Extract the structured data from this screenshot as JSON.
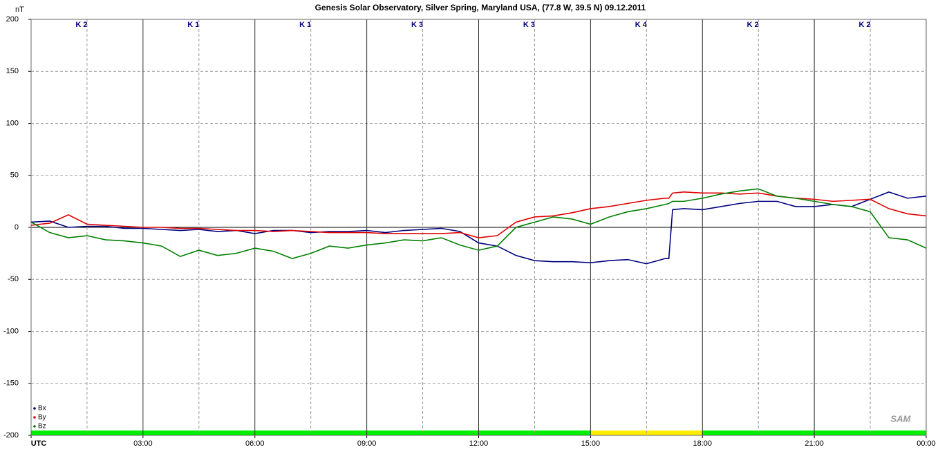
{
  "chart_data": {
    "type": "line",
    "title": "Genesis Solar Observatory, Silver Spring, Maryland USA, (77.8 W, 39.5 N)  09.12.2011",
    "y_label": "nT",
    "logo": "SAM",
    "x": [
      0,
      0.5,
      1,
      1.5,
      2,
      2.5,
      3,
      3.5,
      4,
      4.5,
      5,
      5.5,
      6,
      6.5,
      7,
      7.5,
      8,
      8.5,
      9,
      9.5,
      10,
      10.5,
      11,
      11.5,
      12,
      12.5,
      13,
      13.5,
      14,
      14.5,
      15,
      15.5,
      16,
      16.5,
      17,
      17.1,
      17.2,
      17.5,
      18,
      18.5,
      19,
      19.5,
      20,
      20.5,
      21,
      21.5,
      22,
      22.5,
      23,
      23.5,
      24
    ],
    "series": [
      {
        "name": "Bx",
        "color": "#000080",
        "values": [
          5,
          6,
          0,
          1,
          1,
          -1,
          -1,
          -2,
          -3,
          -2,
          -4,
          -3,
          -6,
          -3,
          -3,
          -5,
          -4,
          -4,
          -3,
          -5,
          -3,
          -2,
          -1,
          -4,
          -15,
          -18,
          -27,
          -32,
          -33,
          -33,
          -34,
          -32,
          -31,
          -35,
          -30,
          -30,
          17,
          18,
          17,
          20,
          23,
          25,
          25,
          20,
          20,
          22,
          20,
          27,
          34,
          28,
          30
        ]
      },
      {
        "name": "By",
        "color": "#e00000",
        "values": [
          2,
          4,
          12,
          3,
          2,
          1,
          0,
          0,
          -1,
          -1,
          -2,
          -3,
          -3,
          -4,
          -3,
          -4,
          -5,
          -5,
          -5,
          -6,
          -6,
          -6,
          -6,
          -5,
          -10,
          -8,
          5,
          10,
          11,
          14,
          18,
          20,
          23,
          26,
          28,
          28,
          33,
          34,
          33,
          33,
          32,
          33,
          30,
          28,
          27,
          25,
          26,
          27,
          18,
          13,
          11
        ]
      },
      {
        "name": "Bz",
        "color": "#008000",
        "values": [
          5,
          -5,
          -10,
          -8,
          -12,
          -13,
          -15,
          -18,
          -28,
          -22,
          -27,
          -25,
          -20,
          -23,
          -30,
          -25,
          -18,
          -20,
          -17,
          -15,
          -12,
          -13,
          -10,
          -17,
          -22,
          -18,
          0,
          5,
          10,
          8,
          3,
          10,
          15,
          18,
          22,
          23,
          25,
          25,
          28,
          32,
          35,
          37,
          30,
          28,
          25,
          22,
          20,
          15,
          -10,
          -12,
          -20
        ]
      }
    ],
    "xlim": [
      0,
      24
    ],
    "xticks": [
      {
        "value": 0,
        "label": "UTC"
      },
      {
        "value": 3,
        "label": "03:00"
      },
      {
        "value": 6,
        "label": "06:00"
      },
      {
        "value": 9,
        "label": "09:00"
      },
      {
        "value": 12,
        "label": "12:00"
      },
      {
        "value": 15,
        "label": "15:00"
      },
      {
        "value": 18,
        "label": "18:00"
      },
      {
        "value": 21,
        "label": "21:00"
      },
      {
        "value": 24,
        "label": "00:00"
      }
    ],
    "ylim": [
      -200,
      200
    ],
    "yticks": [
      -200,
      -150,
      -100,
      -50,
      0,
      50,
      100,
      150,
      200
    ],
    "grid": true,
    "legend": "lower left",
    "k_index": {
      "labels": [
        "K 2",
        "K 1",
        "K 1",
        "K 3",
        "K 3",
        "K 4",
        "K 2",
        "K 2"
      ],
      "colors": [
        "#00ee00",
        "#00ee00",
        "#00ee00",
        "#00ee00",
        "#00ee00",
        "#ffee00",
        "#00ee00",
        "#00ee00"
      ]
    }
  }
}
